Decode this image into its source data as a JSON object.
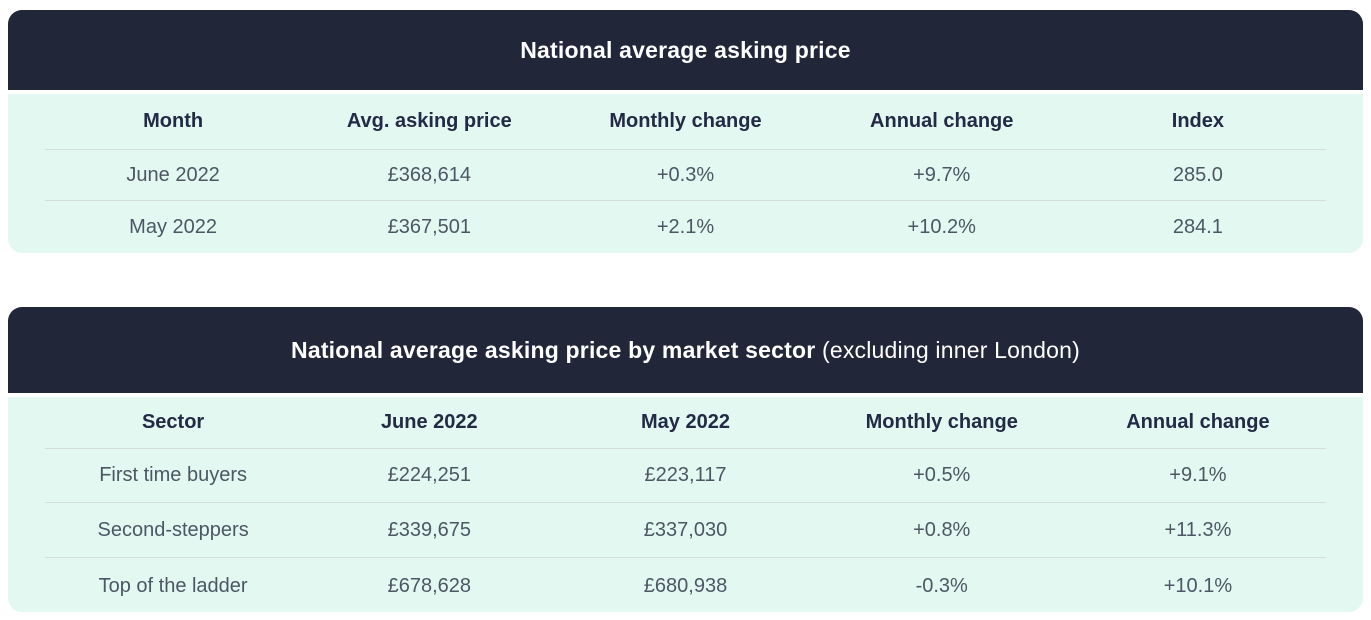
{
  "colors": {
    "header_bg": "#212639",
    "header_text": "#ffffff",
    "body_bg": "#e3f8f1",
    "column_header_text": "#232a45",
    "cell_text": "#4d5764",
    "divider": "#d4dcdd",
    "page_bg": "#ffffff"
  },
  "chart_data": [
    {
      "type": "table",
      "title": "National average asking price",
      "columns": [
        "Month",
        "Avg. asking price",
        "Monthly change",
        "Annual change",
        "Index"
      ],
      "rows": [
        [
          "June 2022",
          "£368,614",
          "+0.3%",
          "+9.7%",
          "285.0"
        ],
        [
          "May 2022",
          "£367,501",
          "+2.1%",
          "+10.2%",
          "284.1"
        ]
      ]
    },
    {
      "type": "table",
      "title": "National average asking price by market sector (excluding inner London)",
      "title_bold": "National average asking price by market sector",
      "title_suffix": " (excluding inner London)",
      "columns": [
        "Sector",
        "June 2022",
        "May 2022",
        "Monthly change",
        "Annual change"
      ],
      "rows": [
        [
          "First time buyers",
          "£224,251",
          "£223,117",
          "+0.5%",
          "+9.1%"
        ],
        [
          "Second-steppers",
          "£339,675",
          "£337,030",
          "+0.8%",
          "+11.3%"
        ],
        [
          "Top of the ladder",
          "£678,628",
          "£680,938",
          "-0.3%",
          "+10.1%"
        ]
      ]
    }
  ]
}
